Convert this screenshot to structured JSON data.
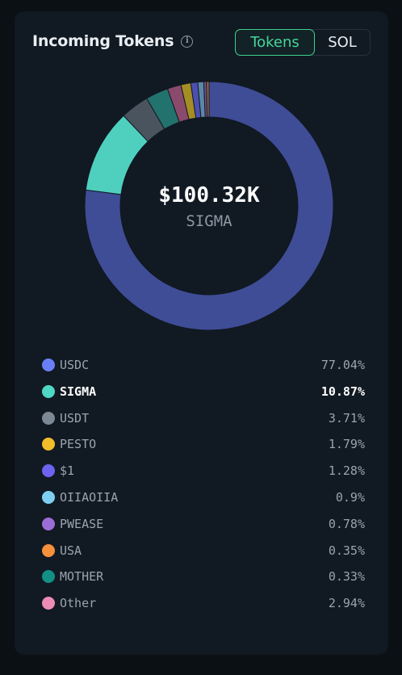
{
  "header": {
    "title": "Incoming Tokens",
    "info_icon": "info-icon"
  },
  "toggle": {
    "options": [
      {
        "label": "Tokens",
        "active": true
      },
      {
        "label": "SOL",
        "active": false
      }
    ]
  },
  "center": {
    "value": "$100.32K",
    "label": "SIGMA"
  },
  "chart_data": {
    "type": "pie",
    "categories": [
      "USDC",
      "SIGMA",
      "USDT",
      "PESTO",
      "$1",
      "OIIAOIIA",
      "PWEASE",
      "USA",
      "MOTHER",
      "Other"
    ],
    "values": [
      77.04,
      10.87,
      3.71,
      1.79,
      1.28,
      0.9,
      0.78,
      0.35,
      0.33,
      2.94
    ],
    "percent_labels": [
      "77.04%",
      "10.87%",
      "3.71%",
      "1.79%",
      "1.28%",
      "0.9%",
      "0.78%",
      "0.35%",
      "0.33%",
      "2.94%"
    ],
    "legend_colors": [
      "#6a7ff5",
      "#4fd6c4",
      "#7c8894",
      "#f2bd2a",
      "#6c63ef",
      "#7dcff2",
      "#9b6dd6",
      "#f5903b",
      "#138f86",
      "#ec8cb4"
    ],
    "slice_colors": [
      "#3f4c96",
      "#4fd0bf",
      "#4a545f",
      "#8a4a6b",
      "#a48d24",
      "#4d4fb0",
      "#5b87a6",
      "#6f4f8f",
      "#9a6a3b",
      "#22736d"
    ],
    "slice_order": [
      0,
      1,
      2,
      9,
      3,
      4,
      5,
      6,
      7,
      8
    ],
    "highlighted": "SIGMA",
    "legend_placement": "bottom"
  }
}
